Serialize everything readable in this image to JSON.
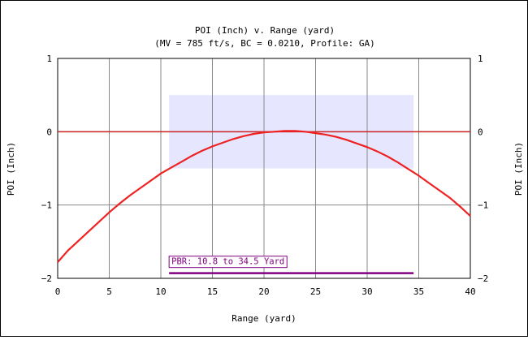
{
  "chart_data": {
    "type": "line",
    "title": "POI (Inch) v. Range (yard)",
    "subtitle": "(MV = 785 ft/s, BC = 0.0210, Profile: GA)",
    "xlabel": "Range (yard)",
    "ylabel": "POI (Inch)",
    "ylabel_right": "POI (Inch)",
    "xlim": [
      0,
      40
    ],
    "ylim": [
      -2,
      1
    ],
    "xticks": [
      0,
      5,
      10,
      15,
      20,
      25,
      30,
      35,
      40
    ],
    "yticks": [
      1,
      0,
      -1,
      -2
    ],
    "grid": true,
    "colors": {
      "trajectory": "#ee2222",
      "zero_line": "#cc2222",
      "zone_fill": "#e6e6ff",
      "pbr": "#800080",
      "grid": "#8a8a8a"
    },
    "series": [
      {
        "x": [
          0,
          1,
          2,
          3,
          4,
          5,
          6,
          7,
          8,
          9,
          10,
          11,
          12,
          13,
          14,
          15,
          16,
          17,
          18,
          19,
          20,
          21,
          22,
          23,
          24,
          25,
          26,
          27,
          28,
          29,
          30,
          31,
          32,
          33,
          34,
          35,
          36,
          37,
          38,
          39,
          40
        ],
        "y": [
          -1.78,
          -1.62,
          -1.49,
          -1.36,
          -1.23,
          -1.1,
          -0.98,
          -0.87,
          -0.77,
          -0.67,
          -0.57,
          -0.49,
          -0.41,
          -0.33,
          -0.26,
          -0.2,
          -0.15,
          -0.1,
          -0.06,
          -0.03,
          -0.01,
          0.0,
          0.01,
          0.01,
          0.0,
          -0.02,
          -0.04,
          -0.07,
          -0.11,
          -0.16,
          -0.21,
          -0.27,
          -0.34,
          -0.42,
          -0.51,
          -0.6,
          -0.7,
          -0.8,
          -0.9,
          -1.02,
          -1.15
        ]
      }
    ],
    "zero_line": 0,
    "vital_zone": {
      "x": [
        10.8,
        34.5
      ],
      "y": [
        -0.5,
        0.5
      ]
    },
    "pbr": {
      "label": "PBR: 10.8 to 34.5 Yard",
      "from": 10.8,
      "to": 34.5
    }
  }
}
